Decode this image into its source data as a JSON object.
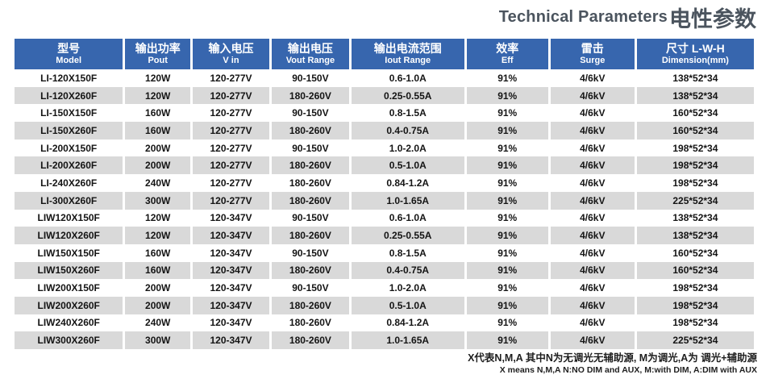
{
  "page": {
    "title_en": "Technical Parameters",
    "title_zh": "电性参数"
  },
  "colors": {
    "header_bg": "#3766ae",
    "row_alt_bg": "#d9d9d9",
    "title_color": "#4b545e"
  },
  "table": {
    "columns": [
      {
        "zh": "型号",
        "en": "Model"
      },
      {
        "zh": "输出功率",
        "en": "Pout"
      },
      {
        "zh": "输入电压",
        "en": "V in"
      },
      {
        "zh": "输出电压",
        "en": "Vout Range"
      },
      {
        "zh": "输出电流范围",
        "en": "Iout Range"
      },
      {
        "zh": "效率",
        "en": "Eff"
      },
      {
        "zh": "雷击",
        "en": "Surge"
      },
      {
        "zh": "尺寸 L-W-H",
        "en": "Dimension(mm)"
      }
    ],
    "rows": [
      [
        "LI-120X150F",
        "120W",
        "120-277V",
        "90-150V",
        "0.6-1.0A",
        "91%",
        "4/6kV",
        "138*52*34"
      ],
      [
        "LI-120X260F",
        "120W",
        "120-277V",
        "180-260V",
        "0.25-0.55A",
        "91%",
        "4/6kV",
        "138*52*34"
      ],
      [
        "LI-150X150F",
        "160W",
        "120-277V",
        "90-150V",
        "0.8-1.5A",
        "91%",
        "4/6kV",
        "160*52*34"
      ],
      [
        "LI-150X260F",
        "160W",
        "120-277V",
        "180-260V",
        "0.4-0.75A",
        "91%",
        "4/6kV",
        "160*52*34"
      ],
      [
        "LI-200X150F",
        "200W",
        "120-277V",
        "90-150V",
        "1.0-2.0A",
        "91%",
        "4/6kV",
        "198*52*34"
      ],
      [
        "LI-200X260F",
        "200W",
        "120-277V",
        "180-260V",
        "0.5-1.0A",
        "91%",
        "4/6kV",
        "198*52*34"
      ],
      [
        "LI-240X260F",
        "240W",
        "120-277V",
        "180-260V",
        "0.84-1.2A",
        "91%",
        "4/6kV",
        "198*52*34"
      ],
      [
        "LI-300X260F",
        "300W",
        "120-277V",
        "180-260V",
        "1.0-1.65A",
        "91%",
        "4/6kV",
        "225*52*34"
      ],
      [
        "LIW120X150F",
        "120W",
        "120-347V",
        "90-150V",
        "0.6-1.0A",
        "91%",
        "4/6kV",
        "138*52*34"
      ],
      [
        "LIW120X260F",
        "120W",
        "120-347V",
        "180-260V",
        "0.25-0.55A",
        "91%",
        "4/6kV",
        "138*52*34"
      ],
      [
        "LIW150X150F",
        "160W",
        "120-347V",
        "90-150V",
        "0.8-1.5A",
        "91%",
        "4/6kV",
        "160*52*34"
      ],
      [
        "LIW150X260F",
        "160W",
        "120-347V",
        "180-260V",
        "0.4-0.75A",
        "91%",
        "4/6kV",
        "160*52*34"
      ],
      [
        "LIW200X150F",
        "200W",
        "120-347V",
        "90-150V",
        "1.0-2.0A",
        "91%",
        "4/6kV",
        "198*52*34"
      ],
      [
        "LIW200X260F",
        "200W",
        "120-347V",
        "180-260V",
        "0.5-1.0A",
        "91%",
        "4/6kV",
        "198*52*34"
      ],
      [
        "LIW240X260F",
        "240W",
        "120-347V",
        "180-260V",
        "0.84-1.2A",
        "91%",
        "4/6kV",
        "198*52*34"
      ],
      [
        "LIW300X260F",
        "300W",
        "120-347V",
        "180-260V",
        "1.0-1.65A",
        "91%",
        "4/6kV",
        "225*52*34"
      ]
    ]
  },
  "footnote": {
    "zh": "X代表N,M,A 其中N为无调光无辅助源, M为调光,A为 调光+辅助源",
    "en": "X means N,M,A  N:NO DIM and AUX, M:with DIM, A:DIM with AUX"
  }
}
